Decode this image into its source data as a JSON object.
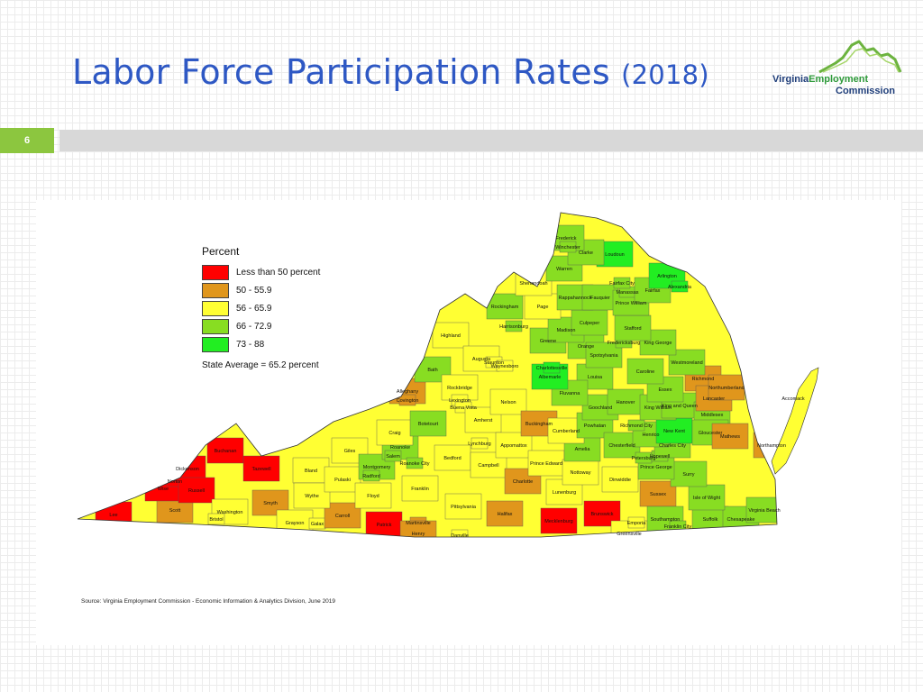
{
  "slide": {
    "title": "Labor Force Participation Rates",
    "year": "(2018)",
    "page_number": "6"
  },
  "logo": {
    "word1": "Virginia",
    "word2": "Employment",
    "word3": "Commission",
    "icon": "virginia-mountain-outline-icon"
  },
  "legend": {
    "title": "Percent",
    "items": [
      {
        "label": "Less than 50 percent",
        "color": "#ff0000"
      },
      {
        "label": "50 - 55.9",
        "color": "#e0961c"
      },
      {
        "label": "56 - 65.9",
        "color": "#ffff33"
      },
      {
        "label": "66 - 72.9",
        "color": "#88dd22"
      },
      {
        "label": "73 - 88",
        "color": "#22ee22"
      }
    ],
    "state_average": "State Average = 65.2 percent"
  },
  "source": "Source: Virginia Employment Commission - Economic Information & Analytics Division, June 2019",
  "counties": [
    {
      "name": "Lee",
      "cls": 0
    },
    {
      "name": "Scott",
      "cls": 1
    },
    {
      "name": "Wise",
      "cls": 0
    },
    {
      "name": "Norton",
      "cls": 0
    },
    {
      "name": "Dickenson",
      "cls": 0
    },
    {
      "name": "Buchanan",
      "cls": 0
    },
    {
      "name": "Russell",
      "cls": 0
    },
    {
      "name": "Tazewell",
      "cls": 0
    },
    {
      "name": "Washington",
      "cls": 2
    },
    {
      "name": "Bristol",
      "cls": 2
    },
    {
      "name": "Smyth",
      "cls": 1
    },
    {
      "name": "Bland",
      "cls": 2
    },
    {
      "name": "Grayson",
      "cls": 2
    },
    {
      "name": "Galax",
      "cls": 2
    },
    {
      "name": "Carroll",
      "cls": 1
    },
    {
      "name": "Wythe",
      "cls": 2
    },
    {
      "name": "Pulaski",
      "cls": 2
    },
    {
      "name": "Giles",
      "cls": 2
    },
    {
      "name": "Montgomery",
      "cls": 3
    },
    {
      "name": "Radford",
      "cls": 3
    },
    {
      "name": "Floyd",
      "cls": 2
    },
    {
      "name": "Patrick",
      "cls": 0
    },
    {
      "name": "Martinsville",
      "cls": 1
    },
    {
      "name": "Henry",
      "cls": 1
    },
    {
      "name": "Franklin",
      "cls": 2
    },
    {
      "name": "Roanoke",
      "cls": 3
    },
    {
      "name": "Salem",
      "cls": 3
    },
    {
      "name": "Roanoke City",
      "cls": 3
    },
    {
      "name": "Craig",
      "cls": 2
    },
    {
      "name": "Botetourt",
      "cls": 3
    },
    {
      "name": "Alleghany",
      "cls": 1
    },
    {
      "name": "Covington",
      "cls": 1
    },
    {
      "name": "Bath",
      "cls": 3
    },
    {
      "name": "Highland",
      "cls": 2
    },
    {
      "name": "Rockbridge",
      "cls": 2
    },
    {
      "name": "Lexington",
      "cls": 2
    },
    {
      "name": "Buena Vista",
      "cls": 2
    },
    {
      "name": "Bedford",
      "cls": 2
    },
    {
      "name": "Pittsylvania",
      "cls": 2
    },
    {
      "name": "Danville",
      "cls": 2
    },
    {
      "name": "Halifax",
      "cls": 1
    },
    {
      "name": "Campbell",
      "cls": 2
    },
    {
      "name": "Lynchburg",
      "cls": 2
    },
    {
      "name": "Amherst",
      "cls": 2
    },
    {
      "name": "Nelson",
      "cls": 2
    },
    {
      "name": "Appomattox",
      "cls": 2
    },
    {
      "name": "Buckingham",
      "cls": 1
    },
    {
      "name": "Charlotte",
      "cls": 1
    },
    {
      "name": "Prince Edward",
      "cls": 2
    },
    {
      "name": "Mecklenburg",
      "cls": 0
    },
    {
      "name": "Brunswick",
      "cls": 0
    },
    {
      "name": "Lunenburg",
      "cls": 2
    },
    {
      "name": "Nottoway",
      "cls": 2
    },
    {
      "name": "Amelia",
      "cls": 3
    },
    {
      "name": "Cumberland",
      "cls": 2
    },
    {
      "name": "Powhatan",
      "cls": 3
    },
    {
      "name": "Chesterfield",
      "cls": 3
    },
    {
      "name": "Dinwiddie",
      "cls": 2
    },
    {
      "name": "Greensville",
      "cls": 2
    },
    {
      "name": "Emporia",
      "cls": 2
    },
    {
      "name": "Sussex",
      "cls": 1
    },
    {
      "name": "Southampton",
      "cls": 3
    },
    {
      "name": "Franklin City",
      "cls": 3
    },
    {
      "name": "Suffolk",
      "cls": 3
    },
    {
      "name": "Chesapeake",
      "cls": 3
    },
    {
      "name": "Virginia Beach",
      "cls": 3
    },
    {
      "name": "Isle of Wight",
      "cls": 3
    },
    {
      "name": "Surry",
      "cls": 3
    },
    {
      "name": "Prince George",
      "cls": 3
    },
    {
      "name": "Petersburg",
      "cls": 3
    },
    {
      "name": "Hopewell",
      "cls": 3
    },
    {
      "name": "Charles City",
      "cls": 3
    },
    {
      "name": "Henrico",
      "cls": 3
    },
    {
      "name": "Richmond City",
      "cls": 3
    },
    {
      "name": "Goochland",
      "cls": 3
    },
    {
      "name": "Hanover",
      "cls": 3
    },
    {
      "name": "New Kent",
      "cls": 4
    },
    {
      "name": "King William",
      "cls": 3
    },
    {
      "name": "King and Queen",
      "cls": 3
    },
    {
      "name": "Middlesex",
      "cls": 3
    },
    {
      "name": "Gloucester",
      "cls": 3
    },
    {
      "name": "Mathews",
      "cls": 1
    },
    {
      "name": "Essex",
      "cls": 3
    },
    {
      "name": "Richmond",
      "cls": 1
    },
    {
      "name": "Lancaster",
      "cls": 1
    },
    {
      "name": "Northumberland",
      "cls": 1
    },
    {
      "name": "Westmoreland",
      "cls": 3
    },
    {
      "name": "King George",
      "cls": 3
    },
    {
      "name": "Caroline",
      "cls": 3
    },
    {
      "name": "Louisa",
      "cls": 3
    },
    {
      "name": "Fluvanna",
      "cls": 3
    },
    {
      "name": "Albemarle",
      "cls": 4
    },
    {
      "name": "Charlottesville",
      "cls": 4
    },
    {
      "name": "Augusta",
      "cls": 2
    },
    {
      "name": "Staunton",
      "cls": 2
    },
    {
      "name": "Waynesboro",
      "cls": 2
    },
    {
      "name": "Rockingham",
      "cls": 3
    },
    {
      "name": "Harrisonburg",
      "cls": 3
    },
    {
      "name": "Greene",
      "cls": 3
    },
    {
      "name": "Orange",
      "cls": 3
    },
    {
      "name": "Madison",
      "cls": 3
    },
    {
      "name": "Culpeper",
      "cls": 3
    },
    {
      "name": "Spotsylvania",
      "cls": 3
    },
    {
      "name": "Fredericksburg",
      "cls": 3
    },
    {
      "name": "Stafford",
      "cls": 3
    },
    {
      "name": "Page",
      "cls": 2
    },
    {
      "name": "Shenandoah",
      "cls": 2
    },
    {
      "name": "Rappahannock",
      "cls": 3
    },
    {
      "name": "Warren",
      "cls": 3
    },
    {
      "name": "Fauquier",
      "cls": 3
    },
    {
      "name": "Prince William",
      "cls": 3
    },
    {
      "name": "Manassas",
      "cls": 3
    },
    {
      "name": "Fairfax",
      "cls": 3
    },
    {
      "name": "Fairfax City",
      "cls": 3
    },
    {
      "name": "Arlington",
      "cls": 4
    },
    {
      "name": "Alexandria",
      "cls": 4
    },
    {
      "name": "Loudoun",
      "cls": 4
    },
    {
      "name": "Clarke",
      "cls": 3
    },
    {
      "name": "Frederick",
      "cls": 3
    },
    {
      "name": "Winchester",
      "cls": 3
    },
    {
      "name": "Accomack",
      "cls": 2
    },
    {
      "name": "Northampton",
      "cls": 1
    }
  ]
}
